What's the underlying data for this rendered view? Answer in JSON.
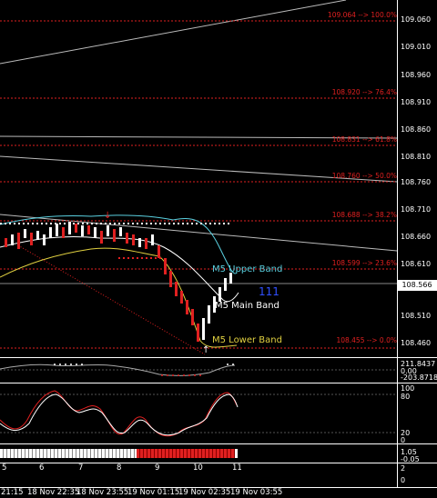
{
  "fib_levels": [
    {
      "label": "109.064 --> 100.0%"
    },
    {
      "label": "108.920 --> 76.4%"
    },
    {
      "label": "108.831 --> 61.8%"
    },
    {
      "label": "108.760 --> 50.0%"
    },
    {
      "label": "108.688 --> 38.2%"
    },
    {
      "label": "108.599 --> 23.6%"
    },
    {
      "label": "108.455 --> 0.0%"
    }
  ],
  "price_axis": [
    "109.060",
    "109.010",
    "108.960",
    "108.910",
    "108.860",
    "108.810",
    "108.760",
    "108.710",
    "108.660",
    "108.610",
    "108.510",
    "108.460"
  ],
  "current_price": "108.566",
  "band_labels": {
    "upper": "M5 Upper Band",
    "main": "M5 Main Band",
    "lower": "M5 Lower Band"
  },
  "marker_text": "111",
  "osc1_axis": {
    "top": "211.8437",
    "zero": "0.00",
    "bottom": "-203.8718"
  },
  "stoch_axis": {
    "top": "100",
    "upper": "80",
    "lower": "20",
    "bottom": "0"
  },
  "ind3_axis": {
    "top": "1.05",
    "bottom": "-0.05"
  },
  "ind4_axis": {
    "top": "2",
    "bottom": "0"
  },
  "hour_labels": [
    "5",
    "6",
    "7",
    "8",
    "9",
    "10",
    "11"
  ],
  "time_labels": [
    "21:15",
    "18 Nov 22:35",
    "18 Nov 23:55",
    "19 Nov 01:15",
    "19 Nov 02:35",
    "19 Nov 03:55"
  ],
  "colors": {
    "bg": "#000000",
    "bull": "#ffffff",
    "bear": "#e02020",
    "upper_band": "#5ad0e0",
    "lower_band": "#e0d040",
    "main_band": "#ffffff",
    "fib": "#e02020"
  }
}
